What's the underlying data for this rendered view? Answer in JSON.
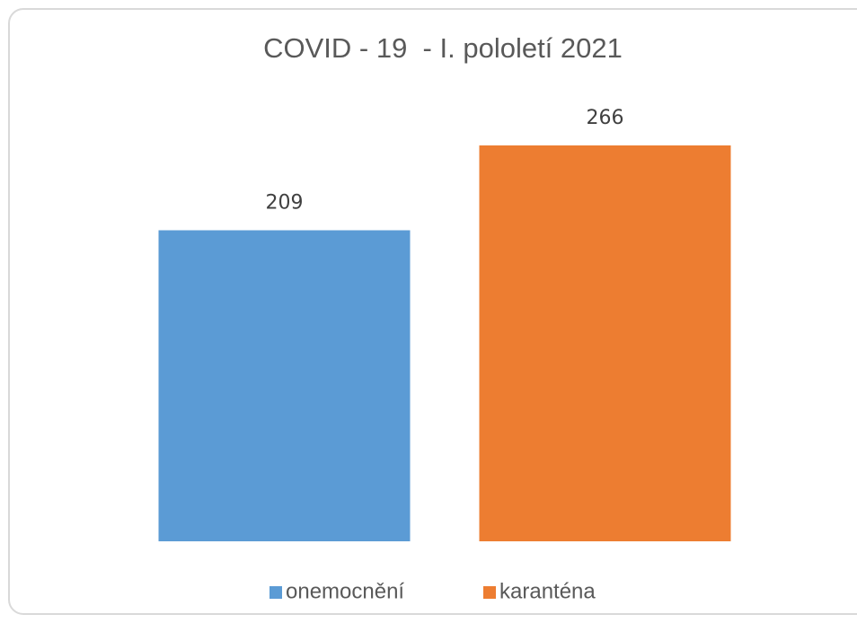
{
  "chart_data": {
    "type": "bar",
    "title": "COVID - 19  - I. pololetí 2021",
    "categories": [
      null
    ],
    "series": [
      {
        "name": "onemocnění",
        "color": "#5b9bd5",
        "values": [
          209
        ]
      },
      {
        "name": "karanténa",
        "color": "#ed7d31",
        "values": [
          266
        ]
      }
    ],
    "legend": "bottom",
    "grid": false
  }
}
